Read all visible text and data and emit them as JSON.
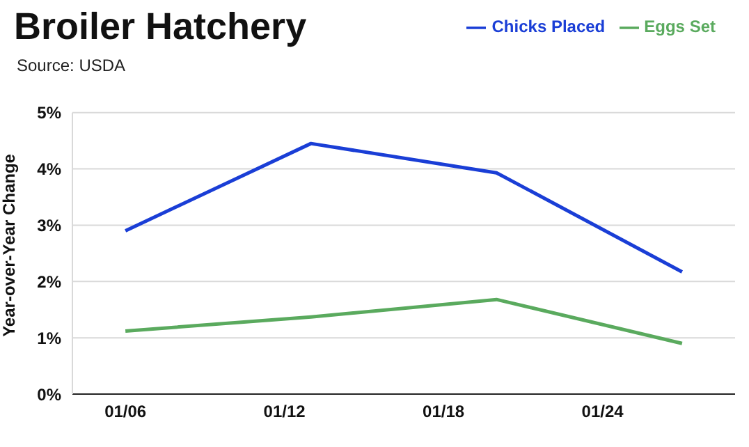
{
  "chart_data": {
    "type": "line",
    "title": "Broiler Hatchery",
    "subtitle": "Source: USDA",
    "ylabel": "Year-over-Year Change",
    "x": [
      "--01-06",
      "--01-13",
      "--01-20",
      "--01-27"
    ],
    "series": [
      {
        "name": "Eggs Set",
        "color": "#5aaa5e",
        "values": [
          1.12,
          1.37,
          1.68,
          0.9
        ]
      },
      {
        "name": "Chicks Placed",
        "color": "#1a3ed6",
        "values": [
          2.9,
          4.45,
          3.93,
          2.17
        ]
      }
    ],
    "xlim": [
      "--01-04",
      "--01-29"
    ],
    "xticks": [
      {
        "value": "--01-06",
        "label": "01/06"
      },
      {
        "value": "--01-12",
        "label": "01/12"
      },
      {
        "value": "--01-18",
        "label": "01/18"
      },
      {
        "value": "--01-24",
        "label": "01/24"
      }
    ],
    "ylim": [
      0,
      5
    ],
    "yticks": [
      {
        "value": 0,
        "label": "0%"
      },
      {
        "value": 1,
        "label": "1%"
      },
      {
        "value": 2,
        "label": "2%"
      },
      {
        "value": 3,
        "label": "3%"
      },
      {
        "value": 4,
        "label": "4%"
      },
      {
        "value": 5,
        "label": "5%"
      }
    ],
    "grid": "y",
    "legend": "top right",
    "marker": "none",
    "line_style": "solid"
  }
}
